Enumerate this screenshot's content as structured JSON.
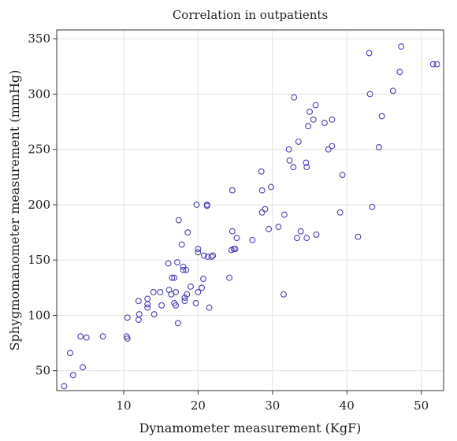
{
  "chart_data": {
    "type": "scatter",
    "title": "Correlation in outpatients",
    "xlabel": "Dynamometer measurement (KgF)",
    "ylabel": "Sphygmomanometer measurement (mmHg)",
    "xlim": [
      1,
      53
    ],
    "ylim": [
      32,
      358
    ],
    "xticks": [
      10,
      20,
      30,
      40,
      50
    ],
    "yticks": [
      50,
      100,
      150,
      200,
      250,
      300,
      350
    ],
    "grid": true,
    "marker_color": "#4a3fb5",
    "points": [
      [
        2,
        36
      ],
      [
        2.8,
        66
      ],
      [
        3.2,
        46
      ],
      [
        4.2,
        81
      ],
      [
        4.5,
        53
      ],
      [
        5,
        80
      ],
      [
        7.2,
        81
      ],
      [
        10.4,
        81
      ],
      [
        10.5,
        98
      ],
      [
        10.5,
        79
      ],
      [
        12,
        96
      ],
      [
        12,
        113
      ],
      [
        12.1,
        101
      ],
      [
        13.2,
        115
      ],
      [
        13.2,
        107
      ],
      [
        13.2,
        110
      ],
      [
        14,
        121
      ],
      [
        14.1,
        101
      ],
      [
        14.9,
        121
      ],
      [
        15.1,
        109
      ],
      [
        16,
        147
      ],
      [
        16.1,
        123
      ],
      [
        16.4,
        119
      ],
      [
        16.5,
        134
      ],
      [
        16.8,
        111
      ],
      [
        16.8,
        134
      ],
      [
        17,
        109
      ],
      [
        17,
        121
      ],
      [
        17.2,
        148
      ],
      [
        17.3,
        93
      ],
      [
        17.4,
        186
      ],
      [
        17.8,
        164
      ],
      [
        18,
        144
      ],
      [
        18,
        141
      ],
      [
        18.2,
        113
      ],
      [
        18.2,
        116
      ],
      [
        18.4,
        141
      ],
      [
        18.5,
        119
      ],
      [
        18.6,
        175
      ],
      [
        19,
        126
      ],
      [
        19.7,
        111
      ],
      [
        19.8,
        200
      ],
      [
        20,
        160
      ],
      [
        20,
        157
      ],
      [
        20,
        121
      ],
      [
        20.5,
        125
      ],
      [
        20.7,
        133
      ],
      [
        20.8,
        154
      ],
      [
        21.2,
        199
      ],
      [
        21.2,
        200
      ],
      [
        21.3,
        153
      ],
      [
        21.5,
        107
      ],
      [
        21.8,
        153
      ],
      [
        22,
        154
      ],
      [
        24.2,
        134
      ],
      [
        24.5,
        159
      ],
      [
        24.6,
        213
      ],
      [
        24.6,
        176
      ],
      [
        24.8,
        160
      ],
      [
        25,
        160
      ],
      [
        25.2,
        170
      ],
      [
        27.3,
        168
      ],
      [
        28.5,
        230
      ],
      [
        28.6,
        193
      ],
      [
        28.6,
        213
      ],
      [
        29,
        196
      ],
      [
        29.5,
        178
      ],
      [
        29.8,
        216
      ],
      [
        30.8,
        180
      ],
      [
        31.5,
        119
      ],
      [
        31.6,
        191
      ],
      [
        32.2,
        250
      ],
      [
        32.3,
        240
      ],
      [
        32.8,
        234
      ],
      [
        32.9,
        297
      ],
      [
        33.3,
        170
      ],
      [
        33.5,
        257
      ],
      [
        33.8,
        176
      ],
      [
        34.5,
        238
      ],
      [
        34.6,
        234
      ],
      [
        34.6,
        170
      ],
      [
        34.8,
        271
      ],
      [
        35,
        284
      ],
      [
        35.5,
        277
      ],
      [
        35.8,
        290
      ],
      [
        35.9,
        173
      ],
      [
        37,
        274
      ],
      [
        37.5,
        250
      ],
      [
        38,
        277
      ],
      [
        38,
        253
      ],
      [
        39.1,
        193
      ],
      [
        39.4,
        227
      ],
      [
        41.5,
        171
      ],
      [
        43,
        337
      ],
      [
        43.1,
        300
      ],
      [
        43.4,
        198
      ],
      [
        44.3,
        252
      ],
      [
        44.7,
        280
      ],
      [
        46.2,
        303
      ],
      [
        47.1,
        320
      ],
      [
        47.3,
        343
      ],
      [
        51.6,
        327
      ],
      [
        52.1,
        327
      ]
    ]
  }
}
